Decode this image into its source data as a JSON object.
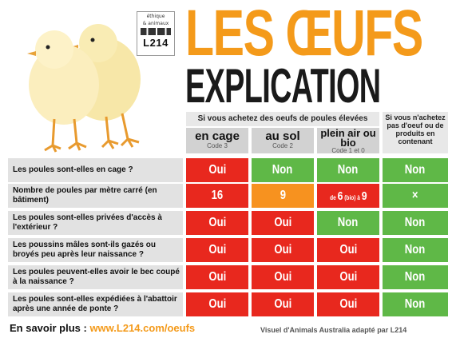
{
  "logo": {
    "line1": "éthique",
    "line2": "& animaux",
    "brand": "L214"
  },
  "title": {
    "line1": "LES ŒUFS",
    "line2": "EXPLICATION"
  },
  "table": {
    "group_header": "Si vous achetez des oeufs de poules élevées",
    "columns": [
      {
        "name": "en cage",
        "code": "Code 3"
      },
      {
        "name": "au sol",
        "code": "Code 2"
      },
      {
        "name": "plein air ou bio",
        "code": "Code 1 et 0"
      }
    ],
    "none_header": "Si vous n'achetez pas d'oeuf ou de produits en contenant",
    "rows": [
      {
        "question": "Les poules sont-elles en cage ?",
        "cells": [
          "Oui",
          "Non",
          "Non",
          "Non"
        ]
      },
      {
        "question": "Nombre de poules par mètre carré (en bâtiment)",
        "cells": [
          "16",
          "9",
          "de 6 (bio) à 9",
          "×"
        ]
      },
      {
        "question": "Les poules sont-elles privées d'accès à l'extérieur ?",
        "cells": [
          "Oui",
          "Oui",
          "Non",
          "Non"
        ]
      },
      {
        "question": "Les poussins mâles sont-ils gazés ou broyés peu après leur naissance ?",
        "cells": [
          "Oui",
          "Oui",
          "Oui",
          "Non"
        ]
      },
      {
        "question": "Les poules peuvent-elles avoir le bec coupé à la naissance ?",
        "cells": [
          "Oui",
          "Oui",
          "Oui",
          "Non"
        ]
      },
      {
        "question": "Les poules sont-elles expédiées à l'abattoir après une année de ponte ?",
        "cells": [
          "Oui",
          "Oui",
          "Oui",
          "Non"
        ]
      }
    ],
    "mixed_cell": {
      "pre": "de",
      "num1": "6",
      "mid": "(bio)",
      "sep": "à",
      "num2": "9"
    }
  },
  "footer": {
    "more_label": "En savoir plus :",
    "url": "www.L214.com/oeufs",
    "credit": "Visuel d'Animals Australia adapté par L214"
  },
  "colors": {
    "orange": "#f49a1a",
    "red": "#e8281e",
    "green": "#5fb847",
    "amber": "#f7921f"
  }
}
